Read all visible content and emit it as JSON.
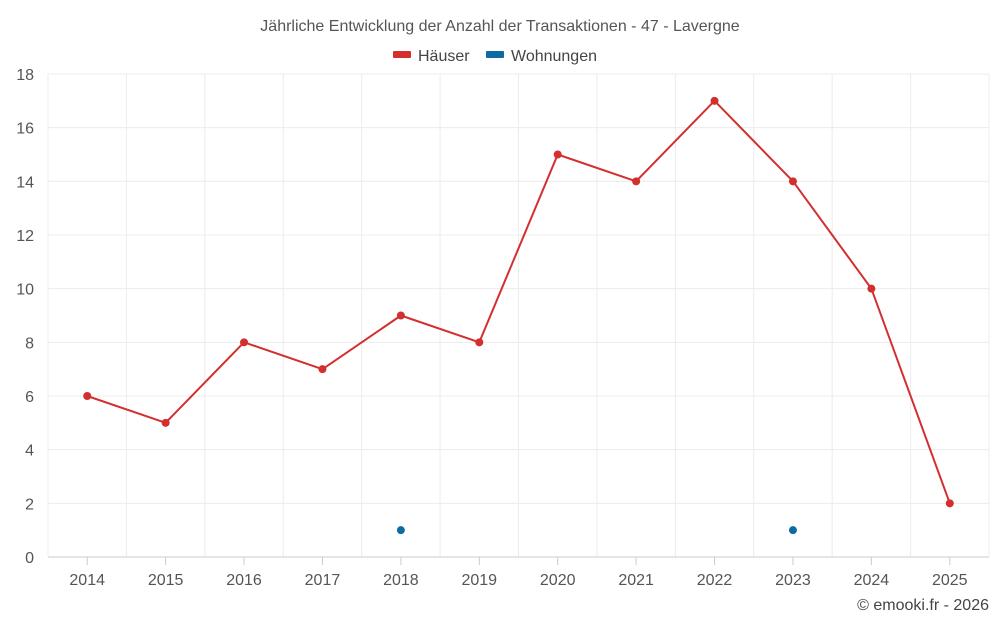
{
  "chart_data": {
    "type": "line",
    "title": "Jährliche Entwicklung der Anzahl der Transaktionen - 47 - Lavergne",
    "categories": [
      "2014",
      "2015",
      "2016",
      "2017",
      "2018",
      "2019",
      "2020",
      "2021",
      "2022",
      "2023",
      "2024",
      "2025"
    ],
    "series": [
      {
        "name": "Häuser",
        "color": "#d32f2f",
        "values": [
          6,
          5,
          8,
          7,
          9,
          8,
          15,
          14,
          17,
          14,
          10,
          2
        ]
      },
      {
        "name": "Wohnungen",
        "color": "#0d6aa3",
        "values": [
          null,
          null,
          null,
          null,
          1,
          null,
          null,
          null,
          null,
          1,
          null,
          null
        ]
      }
    ],
    "ylim": [
      0,
      18
    ],
    "yticks": [
      0,
      2,
      4,
      6,
      8,
      10,
      12,
      14,
      16,
      18
    ],
    "xlabel": "",
    "ylabel": "",
    "grid": true,
    "legend_position": "top-center"
  },
  "credit": "© emooki.fr - 2026",
  "colors": {
    "grid": "#ececec",
    "axis": "#cccccc",
    "text": "#555555"
  }
}
